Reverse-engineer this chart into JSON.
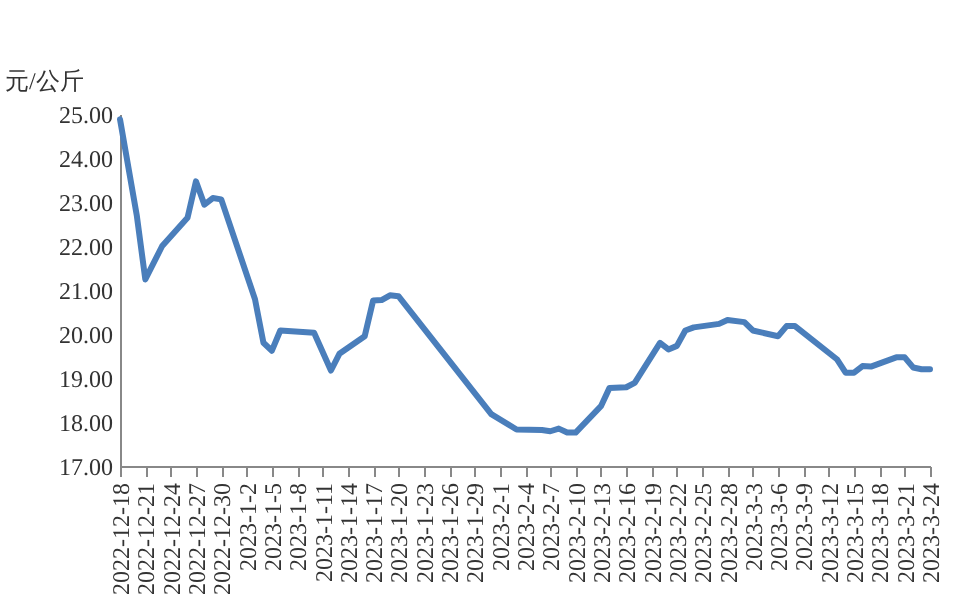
{
  "chart_data": {
    "type": "line",
    "ylabel": "元/公斤",
    "x": [
      "2022-12-18",
      "2022-12-20",
      "2022-12-21",
      "2022-12-23",
      "2022-12-26",
      "2022-12-27",
      "2022-12-28",
      "2022-12-29",
      "2022-12-30",
      "2023-01-03",
      "2023-01-04",
      "2023-01-05",
      "2023-01-06",
      "2023-01-10",
      "2023-01-12",
      "2023-01-13",
      "2023-01-16",
      "2023-01-17",
      "2023-01-18",
      "2023-01-19",
      "2023-01-20",
      "2023-01-31",
      "2023-02-03",
      "2023-02-06",
      "2023-02-07",
      "2023-02-08",
      "2023-02-09",
      "2023-02-10",
      "2023-02-13",
      "2023-02-14",
      "2023-02-16",
      "2023-02-17",
      "2023-02-20",
      "2023-02-21",
      "2023-02-22",
      "2023-02-23",
      "2023-02-24",
      "2023-02-27",
      "2023-02-28",
      "2023-03-02",
      "2023-03-03",
      "2023-03-06",
      "2023-03-07",
      "2023-03-08",
      "2023-03-13",
      "2023-03-14",
      "2023-03-15",
      "2023-03-16",
      "2023-03-17",
      "2023-03-20",
      "2023-03-21",
      "2023-03-22",
      "2023-03-23",
      "2023-03-24"
    ],
    "series": [
      {
        "color": "#4a7ebb",
        "values": [
          24.88,
          22.68,
          21.24,
          22.0,
          22.64,
          23.47,
          22.94,
          23.09,
          23.06,
          20.79,
          19.8,
          19.62,
          20.08,
          20.03,
          19.17,
          19.55,
          19.95,
          20.76,
          20.77,
          20.88,
          20.86,
          18.18,
          17.83,
          17.82,
          17.79,
          17.85,
          17.76,
          17.76,
          18.36,
          18.77,
          18.79,
          18.89,
          19.8,
          19.65,
          19.73,
          20.08,
          20.15,
          20.23,
          20.32,
          20.27,
          20.08,
          19.95,
          20.18,
          20.18,
          19.42,
          19.12,
          19.12,
          19.27,
          19.26,
          19.47,
          19.47,
          19.24,
          19.2,
          19.2
        ]
      }
    ],
    "xlim": [
      "2022-12-18",
      "2023-03-24"
    ],
    "xticks": [
      {
        "value": "2022-12-18",
        "label": "2022-12-18"
      },
      {
        "value": "2022-12-21",
        "label": "2022-12-21"
      },
      {
        "value": "2022-12-24",
        "label": "2022-12-24"
      },
      {
        "value": "2022-12-27",
        "label": "2022-12-27"
      },
      {
        "value": "2022-12-30",
        "label": "2022-12-30"
      },
      {
        "value": "2023-01-02",
        "label": "2023-1-2"
      },
      {
        "value": "2023-01-05",
        "label": "2023-1-5"
      },
      {
        "value": "2023-01-08",
        "label": "2023-1-8"
      },
      {
        "value": "2023-01-11",
        "label": "2023-1-11"
      },
      {
        "value": "2023-01-14",
        "label": "2023-1-14"
      },
      {
        "value": "2023-01-17",
        "label": "2023-1-17"
      },
      {
        "value": "2023-01-20",
        "label": "2023-1-20"
      },
      {
        "value": "2023-01-23",
        "label": "2023-1-23"
      },
      {
        "value": "2023-01-26",
        "label": "2023-1-26"
      },
      {
        "value": "2023-01-29",
        "label": "2023-1-29"
      },
      {
        "value": "2023-02-01",
        "label": "2023-2-1"
      },
      {
        "value": "2023-02-04",
        "label": "2023-2-4"
      },
      {
        "value": "2023-02-07",
        "label": "2023-2-7"
      },
      {
        "value": "2023-02-10",
        "label": "2023-2-10"
      },
      {
        "value": "2023-02-13",
        "label": "2023-2-13"
      },
      {
        "value": "2023-02-16",
        "label": "2023-2-16"
      },
      {
        "value": "2023-02-19",
        "label": "2023-2-19"
      },
      {
        "value": "2023-02-22",
        "label": "2023-2-22"
      },
      {
        "value": "2023-02-25",
        "label": "2023-2-25"
      },
      {
        "value": "2023-02-28",
        "label": "2023-2-28"
      },
      {
        "value": "2023-03-03",
        "label": "2023-3-3"
      },
      {
        "value": "2023-03-06",
        "label": "2023-3-6"
      },
      {
        "value": "2023-03-09",
        "label": "2023-3-9"
      },
      {
        "value": "2023-03-12",
        "label": "2023-3-12"
      },
      {
        "value": "2023-03-15",
        "label": "2023-3-15"
      },
      {
        "value": "2023-03-18",
        "label": "2023-3-18"
      },
      {
        "value": "2023-03-21",
        "label": "2023-3-21"
      },
      {
        "value": "2023-03-24",
        "label": "2023-3-24"
      }
    ],
    "ylim": [
      17,
      25
    ],
    "yticks": [
      {
        "value": 17,
        "label": "17.00"
      },
      {
        "value": 18,
        "label": "18.00"
      },
      {
        "value": 19,
        "label": "19.00"
      },
      {
        "value": 20,
        "label": "20.00"
      },
      {
        "value": 21,
        "label": "21.00"
      },
      {
        "value": 22,
        "label": "22.00"
      },
      {
        "value": 23,
        "label": "23.00"
      },
      {
        "value": 24,
        "label": "24.00"
      },
      {
        "value": 25,
        "label": "25.00"
      }
    ],
    "grid": false,
    "marker": "none",
    "line_style": "solid"
  }
}
